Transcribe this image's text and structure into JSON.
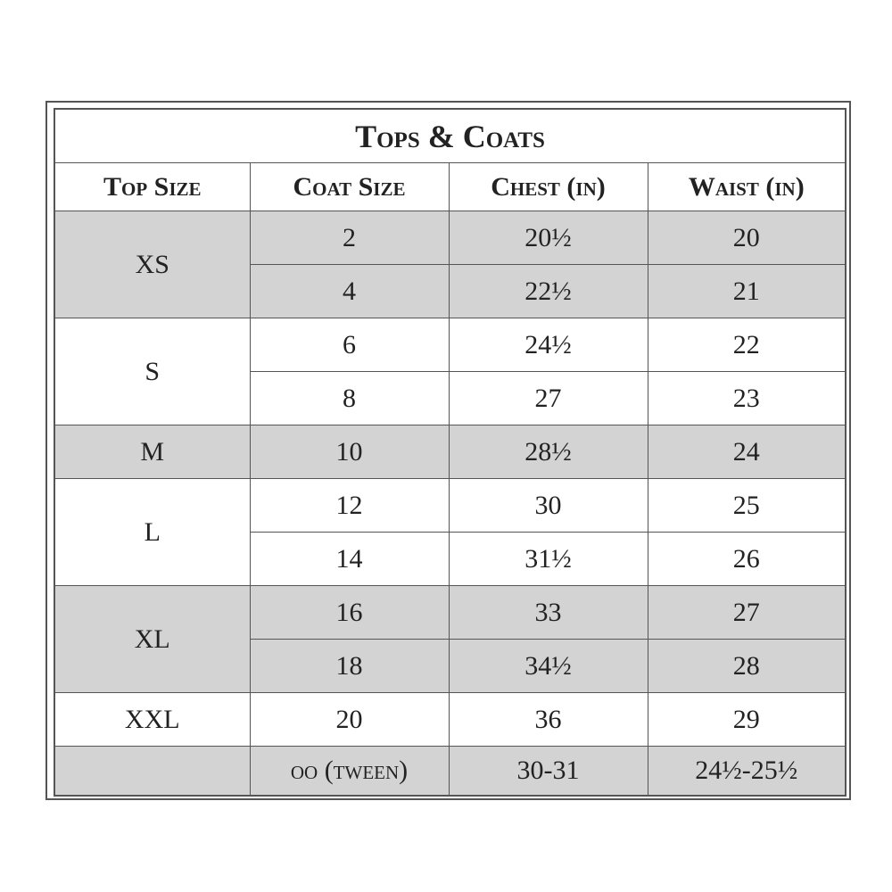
{
  "title": "Tops & Coats",
  "headers": [
    "Top Size",
    "Coat Size",
    "Chest (in)",
    "Waist (in)"
  ],
  "groups": [
    {
      "top_size": "XS",
      "rows": [
        [
          "2",
          "20½",
          "20"
        ],
        [
          "4",
          "22½",
          "21"
        ]
      ]
    },
    {
      "top_size": "S",
      "rows": [
        [
          "6",
          "24½",
          "22"
        ],
        [
          "8",
          "27",
          "23"
        ]
      ]
    },
    {
      "top_size": "M",
      "rows": [
        [
          "10",
          "28½",
          "24"
        ]
      ]
    },
    {
      "top_size": "L",
      "rows": [
        [
          "12",
          "30",
          "25"
        ],
        [
          "14",
          "31½",
          "26"
        ]
      ]
    },
    {
      "top_size": "XL",
      "rows": [
        [
          "16",
          "33",
          "27"
        ],
        [
          "18",
          "34½",
          "28"
        ]
      ]
    },
    {
      "top_size": "XXL",
      "rows": [
        [
          "20",
          "36",
          "29"
        ]
      ]
    },
    {
      "rows": [
        [
          "oo (tween)",
          "30-31",
          "24½-25½"
        ]
      ]
    }
  ]
}
